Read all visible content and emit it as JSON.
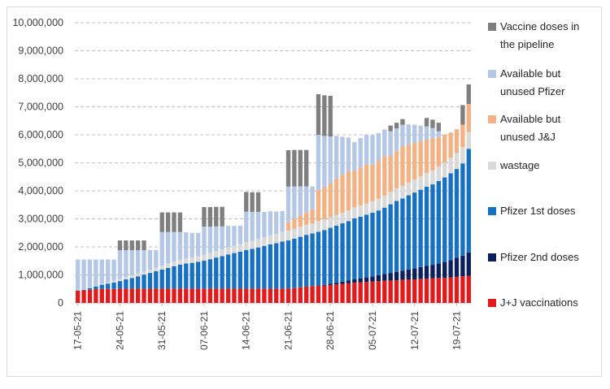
{
  "chart_data": {
    "type": "bar",
    "stacked": true,
    "title": "",
    "xlabel": "",
    "ylabel": "",
    "ylim": [
      0,
      10000000
    ],
    "y_ticks": [
      "0",
      "1,000,000",
      "2,000,000",
      "3,000,000",
      "4,000,000",
      "5,000,000",
      "6,000,000",
      "7,000,000",
      "8,000,000",
      "9,000,000",
      "10,000,000"
    ],
    "grid": "horizontal dashed",
    "legend_position": "right",
    "x_tick_labels": [
      "17-05-21",
      "24-05-21",
      "31-05-21",
      "07-06-21",
      "14-06-21",
      "21-06-21",
      "28-06-21",
      "05-07-21",
      "12-07-21",
      "19-07-21"
    ],
    "categories": [
      "17-05-21",
      "18-05-21",
      "19-05-21",
      "20-05-21",
      "21-05-21",
      "22-05-21",
      "23-05-21",
      "24-05-21",
      "25-05-21",
      "26-05-21",
      "27-05-21",
      "28-05-21",
      "29-05-21",
      "30-05-21",
      "31-05-21",
      "01-06-21",
      "02-06-21",
      "03-06-21",
      "04-06-21",
      "05-06-21",
      "06-06-21",
      "07-06-21",
      "08-06-21",
      "09-06-21",
      "10-06-21",
      "11-06-21",
      "12-06-21",
      "13-06-21",
      "14-06-21",
      "15-06-21",
      "16-06-21",
      "17-06-21",
      "18-06-21",
      "19-06-21",
      "20-06-21",
      "21-06-21",
      "22-06-21",
      "23-06-21",
      "24-06-21",
      "25-06-21",
      "26-06-21",
      "27-06-21",
      "28-06-21",
      "29-06-21",
      "30-06-21",
      "01-07-21",
      "02-07-21",
      "03-07-21",
      "04-07-21",
      "05-07-21",
      "06-07-21",
      "07-07-21",
      "08-07-21",
      "09-07-21",
      "10-07-21",
      "11-07-21",
      "12-07-21",
      "13-07-21",
      "14-07-21",
      "15-07-21",
      "16-07-21",
      "17-07-21",
      "18-07-21",
      "19-07-21",
      "20-07-21",
      "21-07-21"
    ],
    "series": [
      {
        "name": "J+J vaccinations",
        "color": "#e31a1c",
        "values": [
          440000,
          450000,
          470000,
          490000,
          500000,
          500000,
          500000,
          510000,
          510000,
          510000,
          510000,
          510000,
          510000,
          510000,
          510000,
          510000,
          510000,
          510000,
          510000,
          510000,
          510000,
          510000,
          510000,
          510000,
          510000,
          510000,
          510000,
          510000,
          510000,
          510000,
          510000,
          510000,
          510000,
          510000,
          510000,
          510000,
          530000,
          560000,
          580000,
          600000,
          610000,
          620000,
          640000,
          660000,
          680000,
          700000,
          720000,
          740000,
          750000,
          760000,
          780000,
          790000,
          800000,
          810000,
          820000,
          830000,
          840000,
          860000,
          870000,
          880000,
          890000,
          900000,
          910000,
          930000,
          950000,
          970000
        ]
      },
      {
        "name": "Pfizer 2nd doses",
        "color": "#0b1f5e",
        "values": [
          0,
          0,
          0,
          0,
          0,
          0,
          0,
          0,
          0,
          0,
          0,
          0,
          0,
          0,
          0,
          0,
          0,
          0,
          0,
          0,
          0,
          0,
          0,
          0,
          0,
          0,
          0,
          0,
          0,
          0,
          0,
          0,
          0,
          0,
          0,
          0,
          0,
          0,
          0,
          0,
          10000,
          20000,
          40000,
          60000,
          80000,
          100000,
          120000,
          140000,
          160000,
          180000,
          210000,
          240000,
          270000,
          300000,
          330000,
          360000,
          390000,
          420000,
          450000,
          480000,
          520000,
          570000,
          620000,
          680000,
          740000,
          830000
        ]
      },
      {
        "name": "Pfizer 1st doses",
        "color": "#1670c4",
        "values": [
          0,
          20000,
          60000,
          100000,
          150000,
          190000,
          230000,
          270000,
          330000,
          380000,
          440000,
          500000,
          560000,
          620000,
          680000,
          740000,
          800000,
          860000,
          900000,
          920000,
          960000,
          1000000,
          1050000,
          1110000,
          1160000,
          1220000,
          1270000,
          1320000,
          1380000,
          1420000,
          1470000,
          1520000,
          1580000,
          1620000,
          1680000,
          1720000,
          1760000,
          1800000,
          1850000,
          1880000,
          1920000,
          1960000,
          2000000,
          2040000,
          2080000,
          2120000,
          2180000,
          2200000,
          2240000,
          2280000,
          2310000,
          2370000,
          2450000,
          2530000,
          2580000,
          2650000,
          2710000,
          2760000,
          2830000,
          2870000,
          2940000,
          3010000,
          3100000,
          3170000,
          3290000,
          3700000
        ]
      },
      {
        "name": "wastage",
        "color": "#d9d9d9",
        "values": [
          0,
          10000,
          20000,
          30000,
          40000,
          50000,
          60000,
          70000,
          80000,
          90000,
          100000,
          110000,
          120000,
          130000,
          140000,
          150000,
          160000,
          170000,
          180000,
          190000,
          200000,
          210000,
          220000,
          230000,
          240000,
          250000,
          260000,
          270000,
          280000,
          290000,
          300000,
          310000,
          320000,
          330000,
          340000,
          350000,
          360000,
          360000,
          360000,
          360000,
          380000,
          380000,
          380000,
          380000,
          380000,
          380000,
          400000,
          400000,
          400000,
          410000,
          420000,
          430000,
          440000,
          450000,
          450000,
          460000,
          470000,
          480000,
          490000,
          500000,
          520000,
          530000,
          550000,
          570000,
          580000,
          600000
        ]
      },
      {
        "name": "Available but unused J&J",
        "color": "#f4b183",
        "values": [
          0,
          0,
          0,
          0,
          0,
          0,
          0,
          0,
          0,
          0,
          0,
          0,
          0,
          0,
          0,
          0,
          0,
          0,
          0,
          0,
          0,
          0,
          0,
          0,
          0,
          0,
          0,
          0,
          0,
          0,
          0,
          0,
          0,
          0,
          0,
          300000,
          350000,
          400000,
          450000,
          500000,
          1100000,
          1150000,
          1200000,
          1300000,
          1350000,
          1400000,
          1300000,
          1350000,
          1400000,
          1300000,
          1350000,
          1400000,
          1300000,
          1350000,
          1400000,
          1350000,
          1300000,
          1250000,
          1200000,
          1150000,
          1050000,
          1000000,
          900000,
          850000,
          800000,
          1000000
        ]
      },
      {
        "name": "Available but unused Pfizer",
        "color": "#b4c7e7",
        "values": [
          1110000,
          1070000,
          1000000,
          930000,
          860000,
          810000,
          760000,
          1030000,
          960000,
          900000,
          830000,
          760000,
          700000,
          630000,
          1200000,
          1130000,
          1060000,
          990000,
          930000,
          880000,
          830000,
          1000000,
          940000,
          880000,
          820000,
          770000,
          710000,
          660000,
          1090000,
          1030000,
          970000,
          910000,
          860000,
          800000,
          750000,
          1270000,
          1160000,
          1040000,
          920000,
          820000,
          1980000,
          1830000,
          1680000,
          1520000,
          1360000,
          1200000,
          1020000,
          1050000,
          1060000,
          1050000,
          990000,
          960000,
          870000,
          790000,
          780000,
          720000,
          650000,
          560000,
          460000,
          360000,
          210000,
          0,
          0,
          0,
          0,
          0
        ]
      },
      {
        "name": "Vaccine doses in the pipeline",
        "color": "#7f7f7f",
        "values": [
          0,
          0,
          0,
          0,
          0,
          0,
          0,
          350000,
          350000,
          350000,
          350000,
          350000,
          0,
          0,
          700000,
          700000,
          700000,
          700000,
          0,
          0,
          0,
          700000,
          700000,
          700000,
          700000,
          0,
          0,
          0,
          700000,
          700000,
          700000,
          0,
          0,
          0,
          0,
          1300000,
          1300000,
          1300000,
          1300000,
          0,
          1450000,
          1450000,
          1450000,
          0,
          0,
          0,
          0,
          0,
          0,
          0,
          0,
          0,
          200000,
          200000,
          200000,
          0,
          0,
          0,
          300000,
          300000,
          300000,
          0,
          0,
          0,
          700000,
          700000
        ]
      }
    ]
  }
}
